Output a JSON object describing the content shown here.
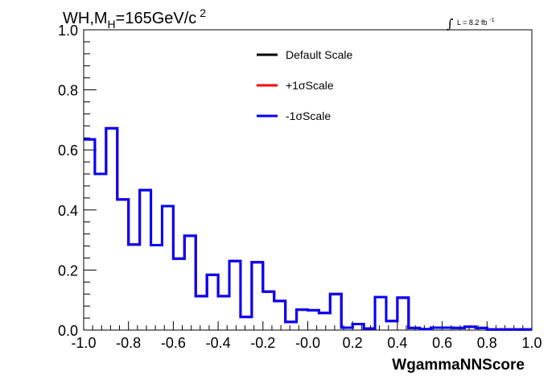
{
  "title": {
    "main": "WH,M",
    "subscript": "H",
    "rest": "=165GeV/c",
    "superscript": "2"
  },
  "luminosity": {
    "integral": "∫",
    "text": "L = 8.2 fb",
    "superscript": "-1"
  },
  "chart_data": {
    "type": "histogram",
    "xlabel": "WgammaNNScore",
    "ylabel": "",
    "xlim": [
      -1.0,
      1.0
    ],
    "ylim": [
      0.0,
      1.0
    ],
    "x_ticks": [
      "-1.0",
      "-0.8",
      "-0.6",
      "-0.4",
      "-0.2",
      "-0.0",
      "0.2",
      "0.4",
      "0.6",
      "0.8",
      "1.0"
    ],
    "y_ticks": [
      "0.0",
      "0.2",
      "0.4",
      "0.6",
      "0.8",
      "1.0"
    ],
    "bin_edges": [
      -1.0,
      -0.95,
      -0.9,
      -0.85,
      -0.8,
      -0.75,
      -0.7,
      -0.65,
      -0.6,
      -0.55,
      -0.5,
      -0.45,
      -0.4,
      -0.35,
      -0.3,
      -0.25,
      -0.2,
      -0.15,
      -0.1,
      -0.05,
      0.0,
      0.05,
      0.1,
      0.15,
      0.2,
      0.25,
      0.3,
      0.35,
      0.4,
      0.45,
      0.5,
      0.55,
      0.6,
      0.65,
      0.7,
      0.75,
      0.8,
      0.85,
      0.9,
      0.95,
      1.0
    ],
    "legend_position": "top-center",
    "series": [
      {
        "name": "Default Scale",
        "color": "#000000",
        "values": [
          0.635,
          0.52,
          0.672,
          0.435,
          0.285,
          0.466,
          0.283,
          0.413,
          0.238,
          0.314,
          0.113,
          0.184,
          0.113,
          0.23,
          0.044,
          0.226,
          0.128,
          0.097,
          0.027,
          0.068,
          0.066,
          0.057,
          0.12,
          0.008,
          0.02,
          0.005,
          0.11,
          0.03,
          0.108,
          0.007,
          0.003,
          0.008,
          0.008,
          0.007,
          0.011,
          0.007,
          0.002,
          0.002,
          0.002,
          0.002
        ]
      },
      {
        "name": "+1σScale",
        "color": "#ff0000",
        "values": [
          0.635,
          0.52,
          0.672,
          0.435,
          0.285,
          0.466,
          0.283,
          0.413,
          0.238,
          0.314,
          0.113,
          0.184,
          0.113,
          0.23,
          0.044,
          0.226,
          0.128,
          0.097,
          0.027,
          0.068,
          0.066,
          0.057,
          0.12,
          0.008,
          0.02,
          0.005,
          0.11,
          0.03,
          0.108,
          0.007,
          0.003,
          0.008,
          0.008,
          0.007,
          0.011,
          0.007,
          0.002,
          0.002,
          0.002,
          0.002
        ]
      },
      {
        "name": "-1σScale",
        "color": "#0000ff",
        "values": [
          0.635,
          0.52,
          0.672,
          0.435,
          0.285,
          0.466,
          0.283,
          0.413,
          0.238,
          0.314,
          0.113,
          0.184,
          0.113,
          0.23,
          0.044,
          0.226,
          0.128,
          0.097,
          0.027,
          0.068,
          0.066,
          0.057,
          0.12,
          0.008,
          0.02,
          0.005,
          0.11,
          0.03,
          0.108,
          0.007,
          0.003,
          0.008,
          0.008,
          0.007,
          0.011,
          0.007,
          0.002,
          0.002,
          0.002,
          0.002
        ]
      }
    ]
  }
}
